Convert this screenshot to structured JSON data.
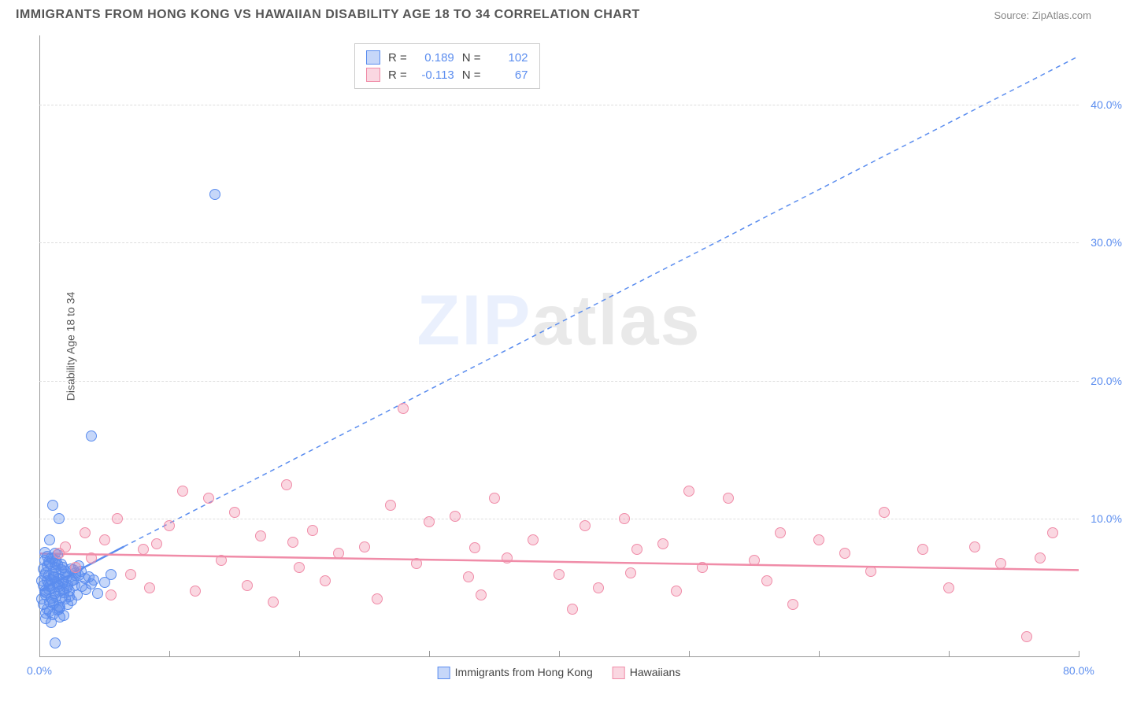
{
  "header": {
    "title": "IMMIGRANTS FROM HONG KONG VS HAWAIIAN DISABILITY AGE 18 TO 34 CORRELATION CHART",
    "source_prefix": "Source: ",
    "source_name": "ZipAtlas.com"
  },
  "chart": {
    "type": "scatter",
    "y_axis_label": "Disability Age 18 to 34",
    "xlim": [
      0,
      80
    ],
    "ylim": [
      0,
      45
    ],
    "x_ticks": [
      0,
      10,
      20,
      30,
      40,
      50,
      60,
      70,
      80
    ],
    "x_tick_labels": [
      "0.0%",
      "",
      "",
      "",
      "",
      "",
      "",
      "",
      "80.0%"
    ],
    "y_ticks": [
      10,
      20,
      30,
      40
    ],
    "y_tick_labels": [
      "10.0%",
      "20.0%",
      "30.0%",
      "40.0%"
    ],
    "background_color": "#ffffff",
    "grid_color": "#dddddd",
    "axis_color": "#999999",
    "tick_label_color": "#5b8def",
    "marker_radius": 7,
    "marker_opacity": 0.55,
    "series": [
      {
        "name": "Immigrants from Hong Kong",
        "color": "#5b8def",
        "fill": "rgba(91,141,239,0.35)",
        "stroke": "#5b8def",
        "r_label": "R =",
        "r_value": "0.189",
        "n_label": "N =",
        "n_value": "102",
        "trend_solid": {
          "x1": 0,
          "y1": 4.8,
          "x2": 6.5,
          "y2": 8.0
        },
        "trend_dashed": {
          "x1": 6.5,
          "y1": 8.0,
          "x2": 80,
          "y2": 43.5
        },
        "points": [
          [
            0.3,
            5.2
          ],
          [
            0.5,
            6.1
          ],
          [
            0.4,
            4.8
          ],
          [
            0.6,
            5.5
          ],
          [
            0.8,
            6.8
          ],
          [
            0.2,
            4.2
          ],
          [
            0.7,
            5.9
          ],
          [
            0.9,
            7.2
          ],
          [
            0.3,
            3.8
          ],
          [
            0.5,
            4.5
          ],
          [
            1.0,
            5.0
          ],
          [
            1.2,
            6.5
          ],
          [
            0.4,
            7.0
          ],
          [
            0.6,
            3.5
          ],
          [
            0.8,
            4.0
          ],
          [
            1.1,
            5.8
          ],
          [
            1.3,
            6.2
          ],
          [
            0.2,
            5.5
          ],
          [
            0.9,
            4.3
          ],
          [
            1.5,
            5.7
          ],
          [
            0.7,
            6.9
          ],
          [
            1.0,
            4.1
          ],
          [
            1.4,
            5.3
          ],
          [
            0.3,
            6.4
          ],
          [
            0.5,
            3.2
          ],
          [
            1.2,
            7.5
          ],
          [
            0.8,
            5.1
          ],
          [
            1.6,
            4.8
          ],
          [
            0.4,
            5.9
          ],
          [
            1.1,
            3.9
          ],
          [
            1.8,
            5.4
          ],
          [
            0.6,
            6.6
          ],
          [
            1.3,
            4.4
          ],
          [
            0.9,
            5.6
          ],
          [
            2.0,
            6.0
          ],
          [
            1.5,
            3.7
          ],
          [
            0.7,
            4.9
          ],
          [
            1.0,
            7.1
          ],
          [
            2.2,
            5.2
          ],
          [
            1.7,
            6.3
          ],
          [
            0.5,
            2.8
          ],
          [
            1.2,
            4.6
          ],
          [
            2.5,
            5.5
          ],
          [
            1.4,
            6.7
          ],
          [
            0.8,
            3.3
          ],
          [
            1.9,
            4.7
          ],
          [
            1.1,
            5.8
          ],
          [
            2.8,
            6.1
          ],
          [
            1.6,
            3.6
          ],
          [
            0.6,
            7.3
          ],
          [
            2.0,
            4.2
          ],
          [
            1.3,
            5.4
          ],
          [
            3.0,
            5.9
          ],
          [
            1.8,
            6.5
          ],
          [
            0.9,
            2.5
          ],
          [
            2.3,
            4.8
          ],
          [
            1.5,
            5.1
          ],
          [
            3.2,
            6.2
          ],
          [
            1.0,
            3.1
          ],
          [
            2.6,
            5.6
          ],
          [
            1.7,
            4.3
          ],
          [
            0.4,
            7.6
          ],
          [
            2.1,
            5.0
          ],
          [
            3.5,
            5.7
          ],
          [
            1.2,
            6.8
          ],
          [
            2.9,
            4.5
          ],
          [
            1.4,
            3.4
          ],
          [
            0.7,
            5.3
          ],
          [
            2.4,
            6.4
          ],
          [
            1.9,
            4.9
          ],
          [
            3.8,
            5.8
          ],
          [
            1.6,
            2.9
          ],
          [
            2.7,
            5.2
          ],
          [
            1.1,
            6.0
          ],
          [
            0.5,
            4.7
          ],
          [
            2.2,
            3.8
          ],
          [
            3.0,
            6.6
          ],
          [
            1.8,
            5.5
          ],
          [
            2.5,
            4.1
          ],
          [
            1.3,
            7.0
          ],
          [
            4.0,
            5.3
          ],
          [
            2.0,
            6.2
          ],
          [
            1.5,
            3.5
          ],
          [
            2.8,
            5.9
          ],
          [
            4.5,
            4.6
          ],
          [
            1.7,
            6.7
          ],
          [
            3.3,
            5.1
          ],
          [
            2.3,
            4.4
          ],
          [
            5.0,
            5.4
          ],
          [
            1.9,
            3.0
          ],
          [
            2.6,
            6.3
          ],
          [
            4.2,
            5.6
          ],
          [
            1.4,
            7.4
          ],
          [
            3.6,
            4.9
          ],
          [
            2.1,
            5.8
          ],
          [
            5.5,
            6.0
          ],
          [
            1.0,
            11.0
          ],
          [
            1.5,
            10.0
          ],
          [
            0.8,
            8.5
          ],
          [
            4.0,
            16.0
          ],
          [
            13.5,
            33.5
          ],
          [
            1.2,
            1.0
          ]
        ]
      },
      {
        "name": "Hawaiians",
        "color": "#f08ca8",
        "fill": "rgba(240,140,168,0.35)",
        "stroke": "#f08ca8",
        "r_label": "R =",
        "r_value": "-0.113",
        "n_label": "N =",
        "n_value": "67",
        "trend_solid": {
          "x1": 0,
          "y1": 7.5,
          "x2": 80,
          "y2": 6.3
        },
        "trend_dashed": null,
        "points": [
          [
            1.5,
            7.5
          ],
          [
            2.0,
            8.0
          ],
          [
            2.8,
            6.5
          ],
          [
            3.5,
            9.0
          ],
          [
            4.0,
            7.2
          ],
          [
            5.0,
            8.5
          ],
          [
            5.5,
            4.5
          ],
          [
            6.0,
            10.0
          ],
          [
            7.0,
            6.0
          ],
          [
            8.0,
            7.8
          ],
          [
            8.5,
            5.0
          ],
          [
            9.0,
            8.2
          ],
          [
            10.0,
            9.5
          ],
          [
            11.0,
            12.0
          ],
          [
            12.0,
            4.8
          ],
          [
            13.0,
            11.5
          ],
          [
            14.0,
            7.0
          ],
          [
            15.0,
            10.5
          ],
          [
            16.0,
            5.2
          ],
          [
            17.0,
            8.8
          ],
          [
            18.0,
            4.0
          ],
          [
            19.0,
            12.5
          ],
          [
            20.0,
            6.5
          ],
          [
            21.0,
            9.2
          ],
          [
            22.0,
            5.5
          ],
          [
            23.0,
            7.5
          ],
          [
            25.0,
            8.0
          ],
          [
            26.0,
            4.2
          ],
          [
            27.0,
            11.0
          ],
          [
            28.0,
            18.0
          ],
          [
            29.0,
            6.8
          ],
          [
            30.0,
            9.8
          ],
          [
            32.0,
            10.2
          ],
          [
            33.0,
            5.8
          ],
          [
            34.0,
            4.5
          ],
          [
            35.0,
            11.5
          ],
          [
            36.0,
            7.2
          ],
          [
            38.0,
            8.5
          ],
          [
            40.0,
            6.0
          ],
          [
            41.0,
            3.5
          ],
          [
            42.0,
            9.5
          ],
          [
            43.0,
            5.0
          ],
          [
            45.0,
            10.0
          ],
          [
            46.0,
            7.8
          ],
          [
            48.0,
            8.2
          ],
          [
            49.0,
            4.8
          ],
          [
            50.0,
            12.0
          ],
          [
            51.0,
            6.5
          ],
          [
            53.0,
            11.5
          ],
          [
            55.0,
            7.0
          ],
          [
            56.0,
            5.5
          ],
          [
            57.0,
            9.0
          ],
          [
            58.0,
            3.8
          ],
          [
            60.0,
            8.5
          ],
          [
            62.0,
            7.5
          ],
          [
            64.0,
            6.2
          ],
          [
            65.0,
            10.5
          ],
          [
            68.0,
            7.8
          ],
          [
            70.0,
            5.0
          ],
          [
            72.0,
            8.0
          ],
          [
            74.0,
            6.8
          ],
          [
            76.0,
            1.5
          ],
          [
            77.0,
            7.2
          ],
          [
            78.0,
            9.0
          ],
          [
            19.5,
            8.3
          ],
          [
            33.5,
            7.9
          ],
          [
            45.5,
            6.1
          ]
        ]
      }
    ],
    "bottom_legend": [
      {
        "label": "Immigrants from Hong Kong",
        "fill": "rgba(91,141,239,0.35)",
        "stroke": "#5b8def"
      },
      {
        "label": "Hawaiians",
        "fill": "rgba(240,140,168,0.35)",
        "stroke": "#f08ca8"
      }
    ]
  },
  "watermark": {
    "part1": "ZIP",
    "part2": "atlas"
  }
}
